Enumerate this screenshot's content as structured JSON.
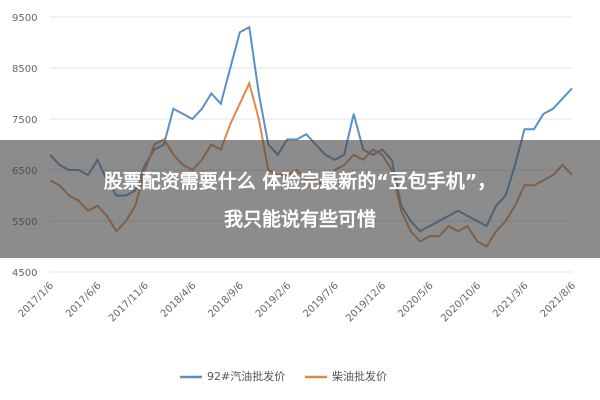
{
  "chart_data": {
    "type": "line",
    "categories": [
      "2017/1/6",
      null,
      null,
      null,
      null,
      "2017/6/6",
      null,
      null,
      null,
      null,
      "2017/11/6",
      null,
      null,
      null,
      null,
      "2018/4/6",
      null,
      null,
      null,
      null,
      "2018/9/6",
      null,
      null,
      null,
      null,
      "2019/2/6",
      null,
      null,
      null,
      null,
      "2019/7/6",
      null,
      null,
      null,
      null,
      "2019/12/6",
      null,
      null,
      null,
      null,
      "2020/5/6",
      null,
      null,
      null,
      null,
      "2020/10/6",
      null,
      null,
      null,
      null,
      "2021/3/6",
      null,
      null,
      null,
      null,
      "2021/8/6"
    ],
    "series": [
      {
        "name": "92#汽油批发价",
        "color": "#5b8fc9",
        "values": [
          6800,
          6600,
          6500,
          6500,
          6400,
          6700,
          6300,
          6000,
          6000,
          6100,
          6600,
          6900,
          7000,
          7700,
          7600,
          7500,
          7700,
          8000,
          7800,
          8500,
          9200,
          9300,
          8000,
          7000,
          6800,
          7100,
          7100,
          7200,
          7000,
          6800,
          6700,
          6800,
          7600,
          6900,
          6800,
          6900,
          6700,
          5800,
          5500,
          5300,
          5400,
          5500,
          5600,
          5700,
          5600,
          5500,
          5400,
          5800,
          6000,
          6600,
          7300,
          7300,
          7600,
          7700,
          7900,
          8100
        ]
      },
      {
        "name": "柴油批发价",
        "color": "#e0884a",
        "values": [
          6300,
          6200,
          6000,
          5900,
          5700,
          5800,
          5600,
          5300,
          5500,
          5800,
          6500,
          7000,
          7100,
          6800,
          6600,
          6500,
          6700,
          7000,
          6900,
          7400,
          7800,
          8200,
          7500,
          6500,
          6400,
          6400,
          6500,
          6300,
          6300,
          6200,
          6500,
          6600,
          6800,
          6700,
          6900,
          6800,
          6500,
          5700,
          5300,
          5100,
          5200,
          5200,
          5400,
          5300,
          5400,
          5100,
          5000,
          5300,
          5500,
          5800,
          6200,
          6200,
          6300,
          6400,
          6600,
          6400
        ]
      }
    ],
    "ylim": [
      4500,
      9500
    ],
    "yticks": [
      4500,
      5500,
      6500,
      7500,
      8500,
      9500
    ],
    "grid": true,
    "legend": "bottom"
  },
  "banner": [
    "股票配资需要什么 体验完最新的“豆包手机”，",
    "我只能说有些可惜"
  ]
}
